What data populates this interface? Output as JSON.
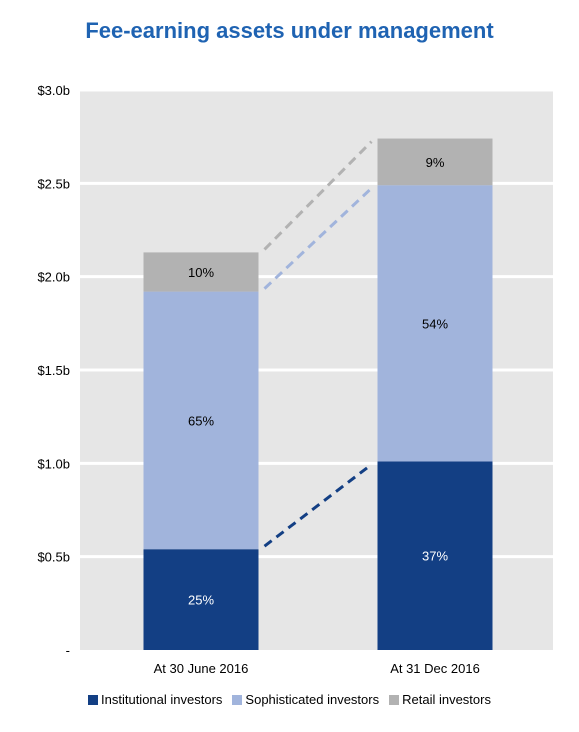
{
  "chart_data": {
    "type": "bar",
    "stacked": true,
    "title": "Fee-earning assets under management",
    "categories": [
      "At 30 June 2016",
      "At 31 Dec 2016"
    ],
    "series": [
      {
        "name": "Institutional investors",
        "values": [
          0.54,
          1.01
        ],
        "labels": [
          "25%",
          "37%"
        ],
        "color": "#133f84"
      },
      {
        "name": "Sophisticated investors",
        "values": [
          1.38,
          1.48
        ],
        "labels": [
          "65%",
          "54%"
        ],
        "color": "#a1b4dc"
      },
      {
        "name": "Retail investors",
        "values": [
          0.21,
          0.25
        ],
        "labels": [
          "10%",
          "9%"
        ],
        "color": "#b2b2b2"
      }
    ],
    "yticks": [
      {
        "value": 0,
        "label": "-"
      },
      {
        "value": 0.5,
        "label": "$0.5b"
      },
      {
        "value": 1.0,
        "label": "$1.0b"
      },
      {
        "value": 1.5,
        "label": "$1.5b"
      },
      {
        "value": 2.0,
        "label": "$2.0b"
      },
      {
        "value": 2.5,
        "label": "$2.5b"
      },
      {
        "value": 3.0,
        "label": "$3.0b"
      }
    ],
    "ylim": [
      0,
      3.0
    ],
    "xlabel": "",
    "ylabel": "",
    "grid": true,
    "legend_position": "bottom",
    "plot_background": "#e6e6e6",
    "label_colors": [
      "#ffffff",
      "#000000",
      "#000000"
    ],
    "connector_colors": [
      "#133f84",
      "#a1b4dc",
      "#b2b2b2"
    ]
  }
}
